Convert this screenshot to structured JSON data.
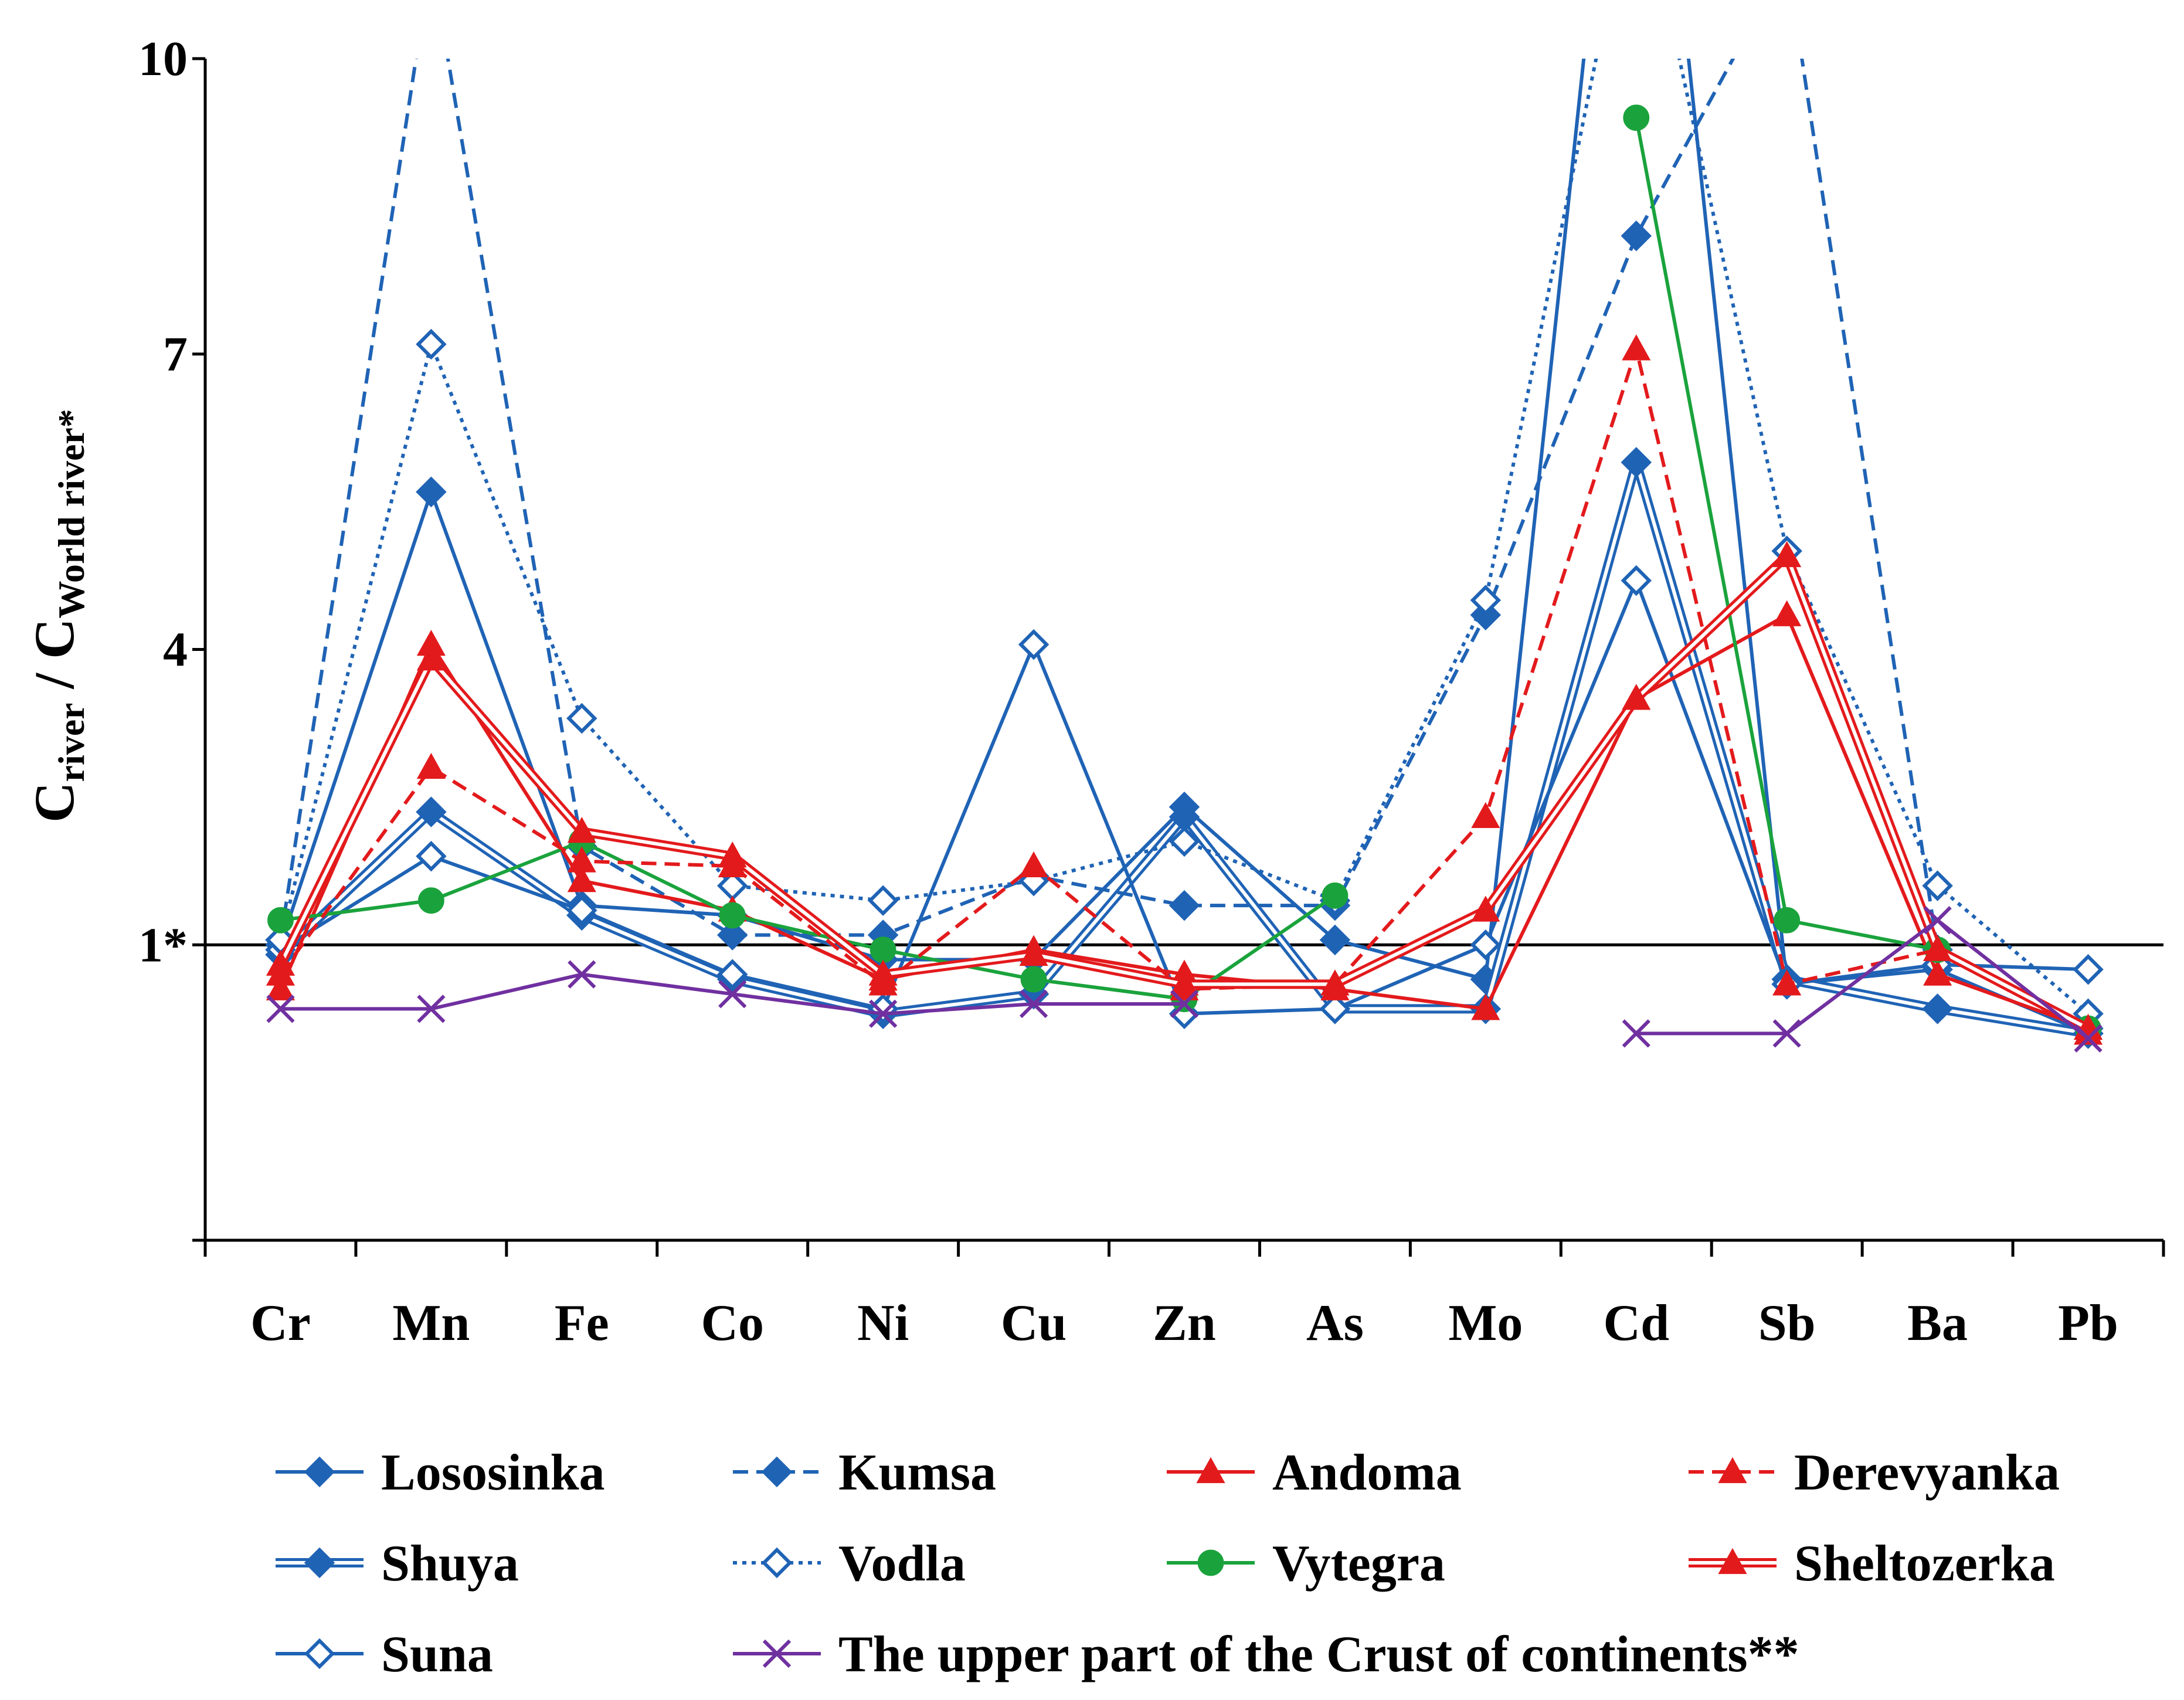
{
  "chart_data": {
    "type": "line",
    "title": "",
    "ylabel_main": "C",
    "ylabel_sub1": "river",
    "ylabel_sep": " / C",
    "ylabel_sub2": "World river*",
    "xlabel": "",
    "categories": [
      "Cr",
      "Mn",
      "Fe",
      "Co",
      "Ni",
      "Cu",
      "Zn",
      "As",
      "Mo",
      "Cd",
      "Sb",
      "Ba",
      "Pb"
    ],
    "y_ticks": [
      {
        "value": 1,
        "label": "1*"
      },
      {
        "value": 4,
        "label": "4"
      },
      {
        "value": 7,
        "label": "7"
      },
      {
        "value": 10,
        "label": "10"
      }
    ],
    "ylim": [
      -2,
      10
    ],
    "reference_line": 1,
    "grid": false,
    "legend_position": "bottom",
    "series": [
      {
        "name": "Lososinka",
        "color": "#1f63b5",
        "dash": "solid",
        "marker": "diamond-filled",
        "double": false,
        "values": [
          1.0,
          5.6,
          1.4,
          1.3,
          0.85,
          0.85,
          2.4,
          1.05,
          0.65,
          15.0,
          0.6,
          0.75,
          0.1
        ]
      },
      {
        "name": "Shuya",
        "color": "#1f63b5",
        "dash": "solid",
        "marker": "diamond-filled",
        "double": true,
        "values": [
          0.9,
          2.35,
          1.3,
          0.65,
          0.3,
          0.5,
          2.3,
          0.35,
          0.35,
          5.9,
          0.65,
          0.35,
          0.1
        ]
      },
      {
        "name": "Suna",
        "color": "#1f63b5",
        "dash": "solid",
        "marker": "diamond-open",
        "double": false,
        "values": [
          0.95,
          1.9,
          1.35,
          0.7,
          0.35,
          4.05,
          0.3,
          0.35,
          1.0,
          4.7,
          0.6,
          0.8,
          0.75
        ]
      },
      {
        "name": "Kumsa",
        "color": "#1f63b5",
        "dash": "dashed",
        "marker": "diamond-filled",
        "double": false,
        "values": [
          1.05,
          11.0,
          2.0,
          1.1,
          1.1,
          1.7,
          1.4,
          1.4,
          4.35,
          8.2,
          11.0,
          0.95,
          0.15
        ]
      },
      {
        "name": "Vodla",
        "color": "#1f63b5",
        "dash": "dotted",
        "marker": "diamond-open",
        "double": false,
        "values": [
          1.05,
          7.1,
          3.3,
          1.6,
          1.45,
          1.65,
          2.05,
          1.45,
          4.5,
          12.0,
          5.0,
          1.6,
          0.3
        ]
      },
      {
        "name": "Andoma",
        "color": "#e31a1c",
        "dash": "solid",
        "marker": "triangle",
        "double": false,
        "values": [
          0.55,
          4.05,
          1.65,
          1.35,
          0.65,
          0.95,
          0.7,
          0.55,
          0.35,
          3.5,
          4.35,
          0.7,
          0.15
        ]
      },
      {
        "name": "Vytegra",
        "color": "#1aa33c",
        "dash": "solid",
        "marker": "circle",
        "double": false,
        "values": [
          1.25,
          1.45,
          2.05,
          1.3,
          0.95,
          0.65,
          0.45,
          1.5,
          null,
          9.4,
          1.25,
          0.95,
          0.15
        ]
      },
      {
        "name": "Derevyanka",
        "color": "#e31a1c",
        "dash": "dashed",
        "marker": "triangle",
        "double": false,
        "values": [
          0.7,
          2.8,
          1.85,
          1.8,
          0.6,
          1.8,
          0.55,
          0.6,
          2.3,
          7.05,
          0.6,
          0.95,
          0.1
        ]
      },
      {
        "name": "Sheltozerka",
        "color": "#e31a1c",
        "dash": "solid",
        "marker": "triangle",
        "double": true,
        "values": [
          0.8,
          3.9,
          2.15,
          1.9,
          0.7,
          0.9,
          0.6,
          0.6,
          1.35,
          3.5,
          4.95,
          0.95,
          0.15
        ]
      },
      {
        "name": "The upper part of the Crust of continents**",
        "color": "#7030a0",
        "dash": "solid",
        "marker": "x",
        "double": false,
        "values": [
          0.35,
          0.35,
          0.7,
          0.5,
          0.3,
          0.4,
          0.4,
          null,
          null,
          0.1,
          0.1,
          1.25,
          0.05
        ]
      }
    ],
    "legend_layout": [
      [
        "Lososinka",
        "Kumsa",
        "Andoma",
        "Derevyanka"
      ],
      [
        "Shuya",
        "Vodla",
        "Vytegra",
        "Sheltozerka"
      ],
      [
        "Suna",
        "The upper part of the Crust of continents**"
      ]
    ]
  }
}
